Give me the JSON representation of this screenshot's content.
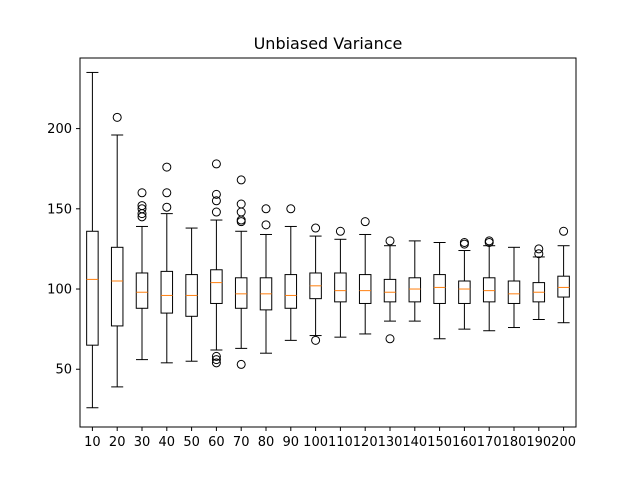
{
  "chart_data": {
    "type": "boxplot",
    "title": "Unbiased Variance",
    "xlabel": "",
    "ylabel": "",
    "categories": [
      "10",
      "20",
      "30",
      "40",
      "50",
      "60",
      "70",
      "80",
      "90",
      "100",
      "110",
      "120",
      "130",
      "140",
      "150",
      "160",
      "170",
      "180",
      "190",
      "200"
    ],
    "ylim": [
      14,
      244
    ],
    "yticks": [
      50,
      100,
      150,
      200
    ],
    "grid": false,
    "box_color": "#000000",
    "median_color": "#ff7f0e",
    "boxes": [
      {
        "label": "10",
        "whislo": 26,
        "q1": 65,
        "med": 106,
        "q3": 136,
        "whishi": 235,
        "fliers": []
      },
      {
        "label": "20",
        "whislo": 39,
        "q1": 77,
        "med": 105,
        "q3": 126,
        "whishi": 196,
        "fliers": [
          207
        ]
      },
      {
        "label": "30",
        "whislo": 56,
        "q1": 88,
        "med": 98,
        "q3": 110,
        "whishi": 139,
        "fliers": [
          145,
          147,
          150,
          152,
          160
        ]
      },
      {
        "label": "40",
        "whislo": 54,
        "q1": 85,
        "med": 96,
        "q3": 111,
        "whishi": 147,
        "fliers": [
          151,
          160,
          176
        ]
      },
      {
        "label": "50",
        "whislo": 55,
        "q1": 83,
        "med": 96,
        "q3": 109,
        "whishi": 138,
        "fliers": []
      },
      {
        "label": "60",
        "whislo": 62,
        "q1": 91,
        "med": 104,
        "q3": 112,
        "whishi": 143,
        "fliers": [
          54,
          56,
          58,
          148,
          155,
          159,
          178
        ]
      },
      {
        "label": "70",
        "whislo": 63,
        "q1": 88,
        "med": 97,
        "q3": 107,
        "whishi": 136,
        "fliers": [
          53,
          142,
          143,
          148,
          153,
          168
        ]
      },
      {
        "label": "80",
        "whislo": 60,
        "q1": 87,
        "med": 97,
        "q3": 107,
        "whishi": 134,
        "fliers": [
          140,
          150
        ]
      },
      {
        "label": "90",
        "whislo": 68,
        "q1": 88,
        "med": 96,
        "q3": 109,
        "whishi": 139,
        "fliers": [
          150
        ]
      },
      {
        "label": "100",
        "whislo": 71,
        "q1": 94,
        "med": 102,
        "q3": 110,
        "whishi": 133,
        "fliers": [
          68,
          138
        ]
      },
      {
        "label": "110",
        "whislo": 70,
        "q1": 92,
        "med": 99,
        "q3": 110,
        "whishi": 131,
        "fliers": [
          136
        ]
      },
      {
        "label": "120",
        "whislo": 72,
        "q1": 91,
        "med": 99,
        "q3": 109,
        "whishi": 134,
        "fliers": [
          142
        ]
      },
      {
        "label": "130",
        "whislo": 80,
        "q1": 92,
        "med": 98,
        "q3": 106,
        "whishi": 127,
        "fliers": [
          69,
          130
        ]
      },
      {
        "label": "140",
        "whislo": 80,
        "q1": 92,
        "med": 100,
        "q3": 107,
        "whishi": 130,
        "fliers": []
      },
      {
        "label": "150",
        "whislo": 69,
        "q1": 91,
        "med": 101,
        "q3": 109,
        "whishi": 129,
        "fliers": []
      },
      {
        "label": "160",
        "whislo": 75,
        "q1": 91,
        "med": 100,
        "q3": 105,
        "whishi": 124,
        "fliers": [
          128,
          129
        ]
      },
      {
        "label": "170",
        "whislo": 74,
        "q1": 92,
        "med": 99,
        "q3": 107,
        "whishi": 127,
        "fliers": [
          129,
          130
        ]
      },
      {
        "label": "180",
        "whislo": 76,
        "q1": 91,
        "med": 97,
        "q3": 105,
        "whishi": 126,
        "fliers": []
      },
      {
        "label": "190",
        "whislo": 81,
        "q1": 92,
        "med": 98,
        "q3": 104,
        "whishi": 120,
        "fliers": [
          122,
          125
        ]
      },
      {
        "label": "200",
        "whislo": 79,
        "q1": 95,
        "med": 101,
        "q3": 108,
        "whishi": 127,
        "fliers": [
          136
        ]
      }
    ]
  }
}
